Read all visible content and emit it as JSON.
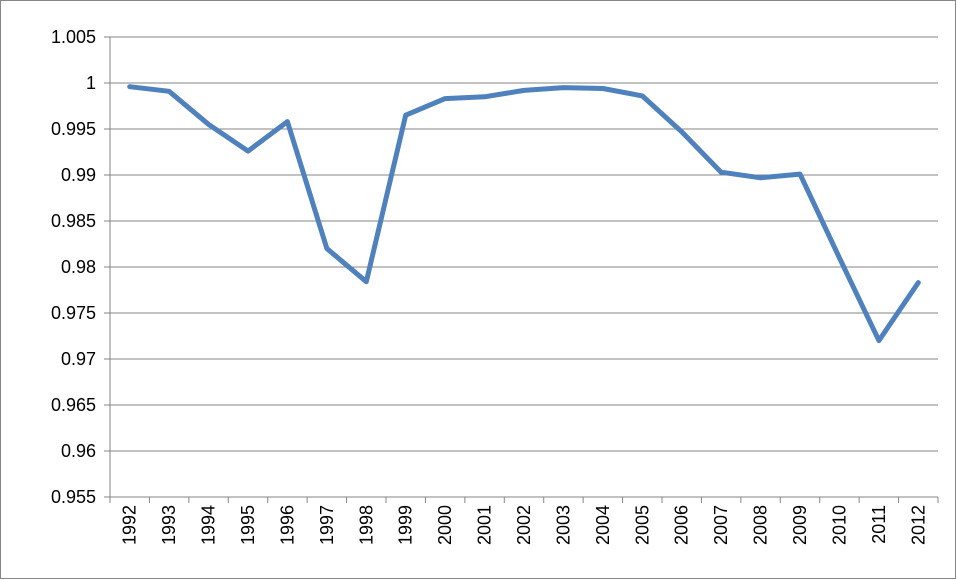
{
  "chart_data": {
    "type": "line",
    "categories": [
      "1992",
      "1993",
      "1994",
      "1995",
      "1996",
      "1997",
      "1998",
      "1999",
      "2000",
      "2001",
      "2002",
      "2003",
      "2004",
      "2005",
      "2006",
      "2007",
      "2008",
      "2009",
      "2010",
      "2011",
      "2012"
    ],
    "series": [
      {
        "color": "#4f81bd",
        "values": [
          0.9996,
          0.9991,
          0.9955,
          0.9926,
          0.9958,
          0.982,
          0.9784,
          0.9965,
          0.9983,
          0.9985,
          0.9992,
          0.9995,
          0.9994,
          0.9986,
          0.9947,
          0.9903,
          0.9897,
          0.9901,
          0.981,
          0.972,
          0.9783
        ]
      }
    ],
    "ylim": [
      0.955,
      1.005
    ],
    "yticks": [
      0.955,
      0.96,
      0.965,
      0.97,
      0.975,
      0.98,
      0.985,
      0.99,
      0.995,
      1,
      1.005
    ],
    "grid": true
  }
}
